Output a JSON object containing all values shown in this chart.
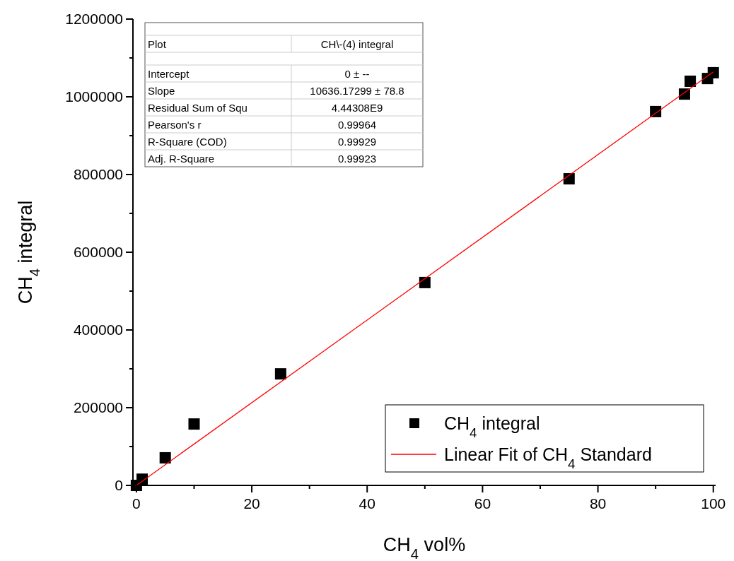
{
  "chart_data": {
    "type": "scatter",
    "xlabel": "CH$_{4}$ vol%",
    "ylabel": "CH$_{4}$ integral",
    "x": [
      0,
      1,
      5,
      10,
      25,
      50,
      75,
      90,
      95,
      96,
      99,
      100
    ],
    "series": [
      {
        "name": "CH$_{4}$ integral",
        "color": "#000000",
        "marker": "square",
        "values": [
          0,
          16000,
          71000,
          158000,
          287000,
          522000,
          789000,
          962000,
          1007000,
          1040000,
          1047000,
          1062000
        ]
      },
      {
        "name": "Linear Fit of CH$_{4}$ Standard",
        "type": "line",
        "color": "#ff0000",
        "marker": "none",
        "line_style": "solid",
        "x": [
          0,
          100
        ],
        "values": [
          0,
          1064000
        ]
      }
    ],
    "xlim": [
      -0.6,
      100.4
    ],
    "ylim": [
      0,
      1200000
    ],
    "xticks": [
      0,
      {
        "value": 10,
        "label": null
      },
      20,
      {
        "value": 30,
        "label": null
      },
      40,
      {
        "value": 50,
        "label": null
      },
      60,
      {
        "value": 70,
        "label": null
      },
      80,
      {
        "value": 90,
        "label": null
      },
      100
    ],
    "yticks": [
      0,
      {
        "value": 100000,
        "label": null
      },
      200000,
      {
        "value": 300000,
        "label": null
      },
      400000,
      {
        "value": 500000,
        "label": null
      },
      600000,
      {
        "value": 700000,
        "label": null
      },
      800000,
      {
        "value": 900000,
        "label": null
      },
      1000000,
      {
        "value": 1100000,
        "label": null
      },
      1200000
    ],
    "grid": false,
    "legend": "bottom right",
    "annotations": [
      "Plot",
      "CH\\-(4) integral",
      "Intercept",
      "0 ± --",
      "Slope",
      "10636.17299 ± 78.8",
      "Residual Sum of Squ",
      "4.44308E9",
      "Pearson's r",
      "0.99964",
      "R-Square (COD)",
      "0.99929",
      "Adj. R-Square",
      "0.99923"
    ]
  }
}
